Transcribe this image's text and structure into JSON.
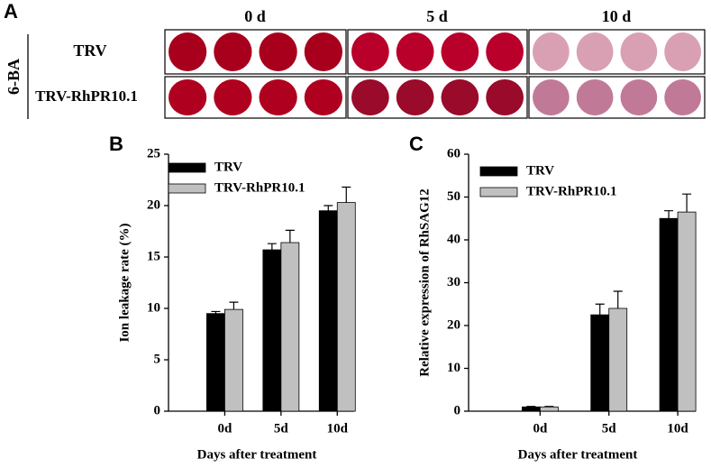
{
  "panel_a": {
    "label": "A",
    "columns": [
      "0 d",
      "5 d",
      "10 d"
    ],
    "rows": [
      "TRV",
      "TRV-RhPR10.1"
    ],
    "treatment": "6-BA"
  },
  "chart_data": [
    {
      "type": "bar",
      "panel_label": "B",
      "x_label": "Days after treatment",
      "y_label": "Ion leakage rate (%)",
      "categories": [
        "0d",
        "5d",
        "10d"
      ],
      "series": [
        {
          "name": "TRV",
          "color": "#000000",
          "values": [
            9.5,
            15.7,
            19.5
          ],
          "errors": [
            0.2,
            0.6,
            0.5
          ]
        },
        {
          "name": "TRV-RhPR10.1",
          "color": "#c0c0c0",
          "values": [
            9.9,
            16.4,
            20.3
          ],
          "errors": [
            0.7,
            1.2,
            1.5
          ]
        }
      ],
      "ylim": [
        0,
        25
      ],
      "yticks": [
        0,
        5,
        10,
        15,
        20,
        25
      ]
    },
    {
      "type": "bar",
      "panel_label": "C",
      "x_label": "Days after treatment",
      "y_label": "Relative expression of RhSAG12",
      "categories": [
        "0d",
        "5d",
        "10d"
      ],
      "series": [
        {
          "name": "TRV",
          "color": "#000000",
          "values": [
            1,
            22.5,
            45
          ],
          "errors": [
            0.1,
            2.5,
            1.8
          ]
        },
        {
          "name": "TRV-RhPR10.1",
          "color": "#c0c0c0",
          "values": [
            1,
            24,
            46.5
          ],
          "errors": [
            0.1,
            4,
            4.2
          ]
        }
      ],
      "ylim": [
        0,
        60
      ],
      "yticks": [
        0,
        10,
        20,
        30,
        40,
        50,
        60
      ]
    }
  ]
}
